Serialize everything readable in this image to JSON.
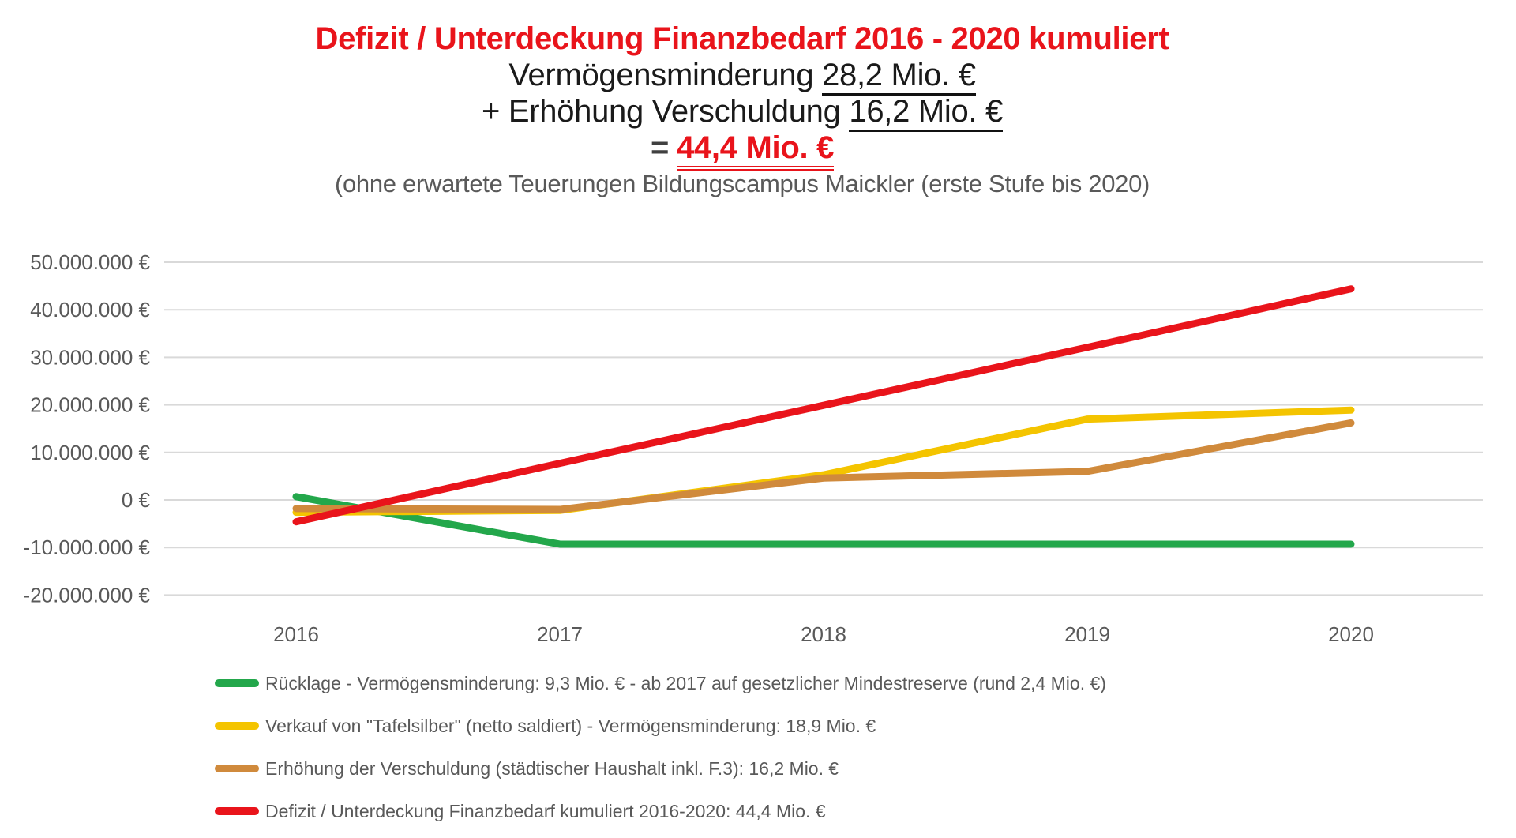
{
  "header": {
    "title": "Defizit / Unterdeckung Finanzbedarf 2016 - 2020 kumuliert",
    "title_color": "#e9141b",
    "line2_prefix": "Vermögensminderung",
    "line2_value": "28,2 Mio. €",
    "line3_prefix": "+ Erhöhung Verschuldung",
    "line3_value": "16,2 Mio. €",
    "line4_prefix": "=",
    "line4_value": "44,4 Mio. €",
    "note": "(ohne erwartete Teuerungen Bildungscampus Maickler (erste Stufe bis 2020)"
  },
  "chart_data": {
    "type": "line",
    "title": "Defizit / Unterdeckung Finanzbedarf 2016 - 2020 kumuliert",
    "categories": [
      "2016",
      "2017",
      "2018",
      "2019",
      "2020"
    ],
    "series": [
      {
        "name": "Rücklage - Vermögensminderung: 9,3 Mio. € - ab 2017 auf gesetzlicher Mindestreserve (rund 2,4 Mio. €)",
        "color": "#23a74b",
        "values": [
          700000,
          -9300000,
          -9300000,
          -9300000,
          -9300000
        ]
      },
      {
        "name": "Verkauf von \"Tafelsilber\" (netto saldiert) - Vermögensminderung: 18,9 Mio. €",
        "color": "#f4c400",
        "values": [
          -2600000,
          -2200000,
          5300000,
          17000000,
          18900000
        ]
      },
      {
        "name": "Erhöhung der Verschuldung (städtischer Haushalt inkl. F.3): 16,2 Mio. €",
        "color": "#d08a3c",
        "values": [
          -1800000,
          -2000000,
          4600000,
          6000000,
          16200000
        ]
      },
      {
        "name": "Defizit / Unterdeckung Finanzbedarf kumuliert 2016-2020: 44,4 Mio. €",
        "color": "#e9141b",
        "values": [
          -4600000,
          7700000,
          19900000,
          32100000,
          44400000
        ]
      }
    ],
    "ylim": [
      -20000000,
      50000000
    ],
    "ytick_step": 10000000,
    "yticks": [
      {
        "value": 50000000,
        "label": "50.000.000 €"
      },
      {
        "value": 40000000,
        "label": "40.000.000 €"
      },
      {
        "value": 30000000,
        "label": "30.000.000 €"
      },
      {
        "value": 20000000,
        "label": "20.000.000 €"
      },
      {
        "value": 10000000,
        "label": "10.000.000 €"
      },
      {
        "value": 0,
        "label": "0 €"
      },
      {
        "value": -10000000,
        "label": "-10.000.000 €"
      },
      {
        "value": -20000000,
        "label": "-20.000.000 €"
      }
    ],
    "grid": true,
    "grid_color": "#d9d9d9",
    "axis_text_color": "#595959",
    "legend_position": "bottom-left"
  }
}
